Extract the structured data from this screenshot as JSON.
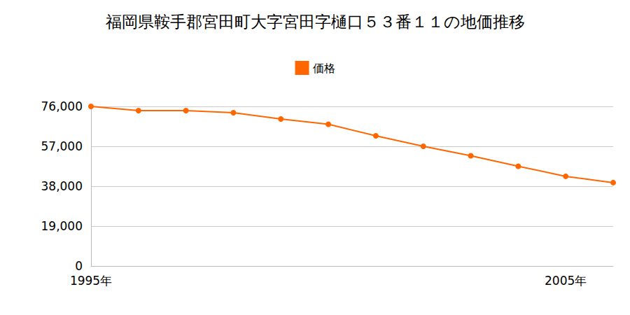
{
  "chart_data": {
    "type": "line",
    "title": "福岡県鞍手郡宮田町大字宮田字樋口５３番１１の地価推移",
    "categories": [
      "1995年",
      null,
      null,
      null,
      null,
      null,
      null,
      null,
      null,
      null,
      "2005年",
      null
    ],
    "series": [
      {
        "name": "価格",
        "color": "#ff6600",
        "marker": "circle",
        "values": [
          76000,
          74000,
          74000,
          73000,
          70000,
          67500,
          62000,
          57000,
          52500,
          47500,
          42700,
          39700
        ]
      }
    ],
    "ylim": [
      0,
      76000
    ],
    "yticks": [
      {
        "value": 0,
        "label": "0"
      },
      {
        "value": 19000,
        "label": "19,000"
      },
      {
        "value": 38000,
        "label": "38,000"
      },
      {
        "value": 57000,
        "label": "57,000"
      },
      {
        "value": 76000,
        "label": "76,000"
      }
    ],
    "grid": true,
    "legend": "top"
  }
}
